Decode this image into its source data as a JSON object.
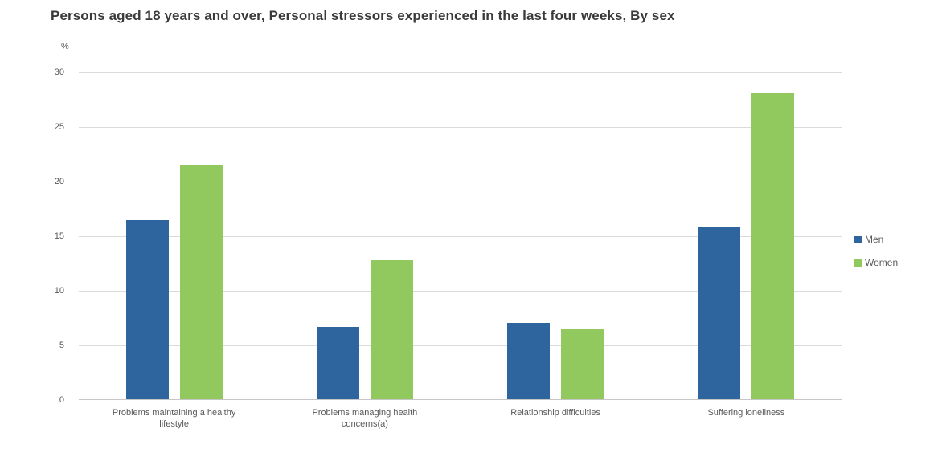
{
  "page": {
    "title": "Persons aged 18 years and over, Personal stressors experienced in the last four weeks, By sex"
  },
  "style": {
    "men_color": "#2F659E",
    "women_color": "#92C95E",
    "grid_color": "#DBDBDB",
    "axis_line_color": "#C6C6C6",
    "tick_text_color": "#595959",
    "title_color": "#3A3A3A",
    "background": "#FFFFFF"
  },
  "y_axis": {
    "unit_label": "%"
  },
  "legend": {
    "items": [
      {
        "label": "Men",
        "color": "#2F659E"
      },
      {
        "label": "Women",
        "color": "#92C95E"
      }
    ]
  },
  "chart_data": {
    "type": "bar",
    "title": "Persons aged 18 years and over, Personal stressors experienced in the last four weeks, By sex",
    "categories": [
      "Problems maintaining a healthy lifestyle",
      "Problems managing health concerns(a)",
      "Relationship difficulties",
      "Suffering loneliness"
    ],
    "series": [
      {
        "name": "Men",
        "color": "#2F659E",
        "values": [
          16.4,
          6.6,
          7.0,
          15.7
        ]
      },
      {
        "name": "Women",
        "color": "#92C95E",
        "values": [
          21.4,
          12.7,
          6.4,
          28.0
        ]
      }
    ],
    "xlabel": "",
    "ylabel": "%",
    "ylim": [
      0,
      30
    ],
    "ytick_interval": 5,
    "grid": true,
    "legend_position": "right"
  }
}
